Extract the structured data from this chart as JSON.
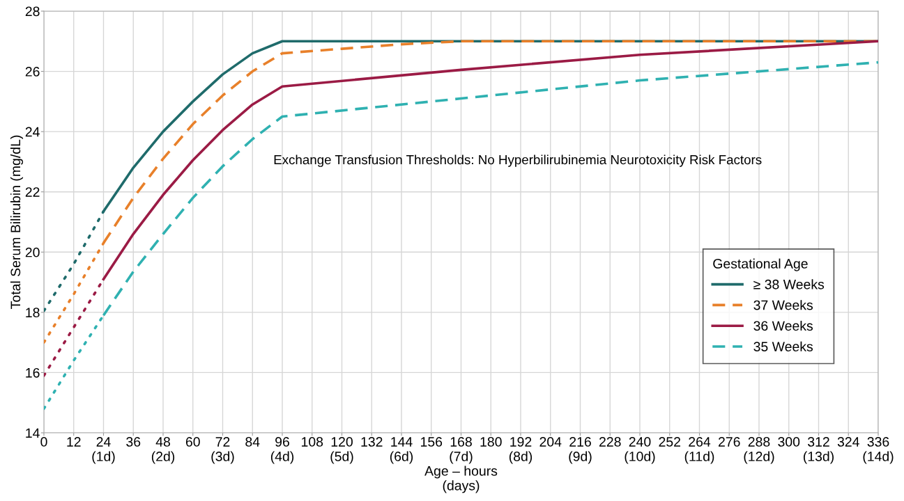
{
  "chart_data": {
    "type": "line",
    "xlabel": "Age – hours\n(days)",
    "ylabel": "Total Serum Bilirubin (mg/dL)",
    "legend_title": "Gestational Age",
    "legend": "right",
    "grid": true,
    "annotations": [
      "Exchange Transfusion Thresholds: No Hyperbilirubinemia Neurotoxicity Risk Factors"
    ],
    "xlim": [
      0,
      336
    ],
    "ylim": [
      14,
      28
    ],
    "xticks": [
      0,
      12,
      {
        "value": 24,
        "label": "24\n(1d)"
      },
      36,
      {
        "value": 48,
        "label": "48\n(2d)"
      },
      60,
      {
        "value": 72,
        "label": "72\n(3d)"
      },
      84,
      {
        "value": 96,
        "label": "96\n(4d)"
      },
      108,
      {
        "value": 120,
        "label": "120\n(5d)"
      },
      132,
      {
        "value": 144,
        "label": "144\n(6d)"
      },
      156,
      {
        "value": 168,
        "label": "168\n(7d)"
      },
      180,
      {
        "value": 192,
        "label": "192\n(8d)"
      },
      204,
      {
        "value": 216,
        "label": "216\n(9d)"
      },
      228,
      {
        "value": 240,
        "label": "240\n(10d)"
      },
      252,
      {
        "value": 264,
        "label": "264\n(11d)"
      },
      276,
      {
        "value": 288,
        "label": "288\n(12d)"
      },
      300,
      {
        "value": 312,
        "label": "312\n(13d)"
      },
      324,
      {
        "value": 336,
        "label": "336\n(14d)"
      }
    ],
    "yticks": [
      14,
      16,
      18,
      20,
      22,
      24,
      26,
      28
    ],
    "series": [
      {
        "name": "≥ 38 Weeks",
        "color": "#1f6b6b",
        "line_style": [
          "dotted",
          "dotted",
          "solid",
          "solid",
          "solid",
          "solid",
          "solid",
          "solid",
          "solid"
        ],
        "x": [
          0,
          12,
          24,
          36,
          48,
          60,
          72,
          84,
          96,
          336
        ],
        "values": [
          18.05,
          19.6,
          21.35,
          22.8,
          24.0,
          25.0,
          25.9,
          26.6,
          27.0,
          27.0
        ]
      },
      {
        "name": "37 Weeks",
        "color": "#e8802a",
        "line_style": [
          "dotted",
          "dotted",
          "dashed",
          "dashed",
          "dashed",
          "dashed",
          "dashed",
          "dashed",
          "dashed",
          "dashed",
          "dashed",
          "dashed"
        ],
        "x": [
          0,
          12,
          24,
          36,
          48,
          60,
          72,
          84,
          96,
          120,
          144,
          168,
          336
        ],
        "values": [
          17.0,
          18.6,
          20.3,
          21.8,
          23.1,
          24.25,
          25.2,
          26.0,
          26.6,
          26.75,
          26.9,
          27.0,
          27.0
        ]
      },
      {
        "name": "36 Weeks",
        "color": "#9b1b45",
        "line_style": [
          "dotted",
          "dotted",
          "solid",
          "solid",
          "solid",
          "solid",
          "solid",
          "solid",
          "solid",
          "solid",
          "solid"
        ],
        "x": [
          0,
          12,
          24,
          36,
          48,
          60,
          72,
          84,
          96,
          168,
          240,
          336
        ],
        "values": [
          15.9,
          17.5,
          19.1,
          20.6,
          21.9,
          23.05,
          24.05,
          24.9,
          25.5,
          26.05,
          26.55,
          27.0
        ]
      },
      {
        "name": "35 Weeks",
        "color": "#2fb1b1",
        "line_style": [
          "dotted",
          "dotted",
          "dashed",
          "dashed",
          "dashed",
          "dashed",
          "dashed",
          "dashed",
          "dashed",
          "dashed",
          "dashed"
        ],
        "x": [
          0,
          12,
          24,
          36,
          48,
          60,
          72,
          84,
          96,
          168,
          240,
          336
        ],
        "values": [
          14.8,
          16.4,
          17.9,
          19.35,
          20.6,
          21.8,
          22.85,
          23.75,
          24.5,
          25.1,
          25.7,
          26.3
        ]
      }
    ]
  }
}
